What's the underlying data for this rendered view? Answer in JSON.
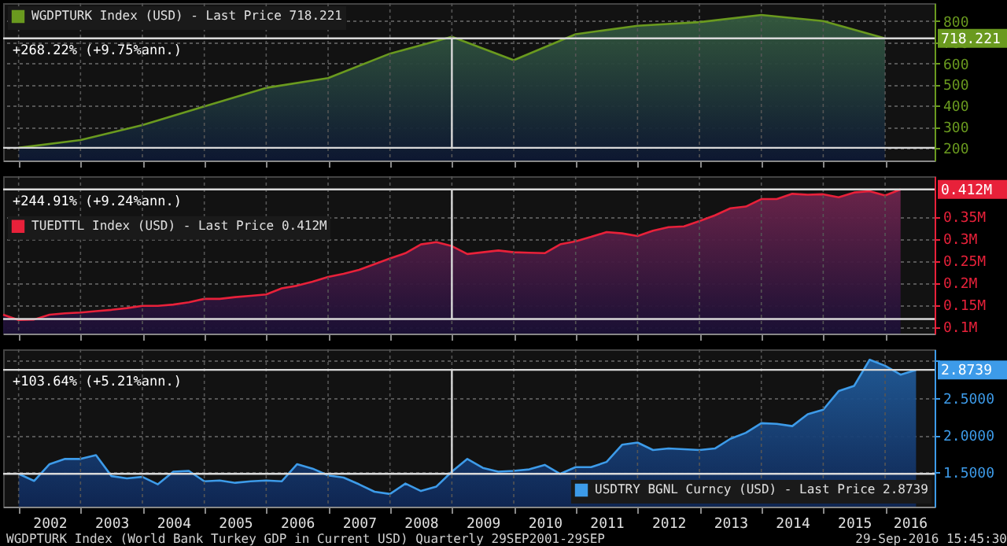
{
  "chart_data": [
    {
      "type": "area",
      "x": [
        2002,
        2003,
        2004,
        2005,
        2006,
        2007,
        2008,
        2009,
        2010,
        2011,
        2012,
        2013,
        2014,
        2015,
        2016
      ],
      "series": [
        {
          "name": "WGDPTURK Index (USD) - Last Price 718.221",
          "color": "#6a9a1f",
          "values": [
            200,
            237,
            308,
            396,
            484,
            530,
            646,
            726,
            615,
            738,
            778,
            795,
            829,
            800,
            718.221
          ]
        }
      ],
      "xlim": [
        2001.75,
        2016.8
      ],
      "xticks": [
        {
          "value": 2002,
          "label": null
        },
        {
          "value": 2003,
          "label": null
        },
        {
          "value": 2004,
          "label": null
        },
        {
          "value": 2005,
          "label": null
        },
        {
          "value": 2006,
          "label": null
        },
        {
          "value": 2007,
          "label": null
        },
        {
          "value": 2008,
          "label": null
        },
        {
          "value": 2009,
          "label": null
        },
        {
          "value": 2010,
          "label": null
        },
        {
          "value": 2011,
          "label": null
        },
        {
          "value": 2012,
          "label": null
        },
        {
          "value": 2013,
          "label": null
        },
        {
          "value": 2014,
          "label": null
        },
        {
          "value": 2015,
          "label": null
        },
        {
          "value": 2016,
          "label": null
        }
      ],
      "ylim": [
        140,
        885
      ],
      "yticks": [
        200,
        300,
        400,
        500,
        600,
        700,
        800
      ],
      "tick_labels": "y",
      "grid": true,
      "legend": "top left",
      "ref_lines": [
        {
          "axis": "y",
          "value": 200,
          "color": "#d9d9d9"
        },
        {
          "axis": "y",
          "value": 718.221,
          "label": "718.221",
          "color": "#d9d9d9"
        },
        {
          "axis": "x",
          "value": 2009,
          "color": "#d9d9d9"
        }
      ],
      "annotations": [
        "+268.22% (+9.75%ann.)"
      ]
    },
    {
      "type": "area",
      "x": [
        2001.75,
        2002,
        2002.25,
        2002.5,
        2002.75,
        2003,
        2003.25,
        2003.5,
        2003.75,
        2004,
        2004.25,
        2004.5,
        2004.75,
        2005,
        2005.25,
        2005.5,
        2005.75,
        2006,
        2006.25,
        2006.5,
        2006.75,
        2007,
        2007.25,
        2007.5,
        2007.75,
        2008,
        2008.25,
        2008.5,
        2008.75,
        2009,
        2009.25,
        2009.5,
        2009.75,
        2010,
        2010.25,
        2010.5,
        2010.75,
        2011,
        2011.25,
        2011.5,
        2011.75,
        2012,
        2012.25,
        2012.5,
        2012.75,
        2013,
        2013.25,
        2013.5,
        2013.75,
        2014,
        2014.25,
        2014.5,
        2014.75,
        2015,
        2015.25,
        2015.5,
        2015.75,
        2016,
        2016.25
      ],
      "series": [
        {
          "name": "TUEDTTL Index (USD) - Last Price 0.412M",
          "color": "#e8213a",
          "values": [
            0.127,
            0.115,
            0.116,
            0.127,
            0.13,
            0.132,
            0.135,
            0.138,
            0.142,
            0.147,
            0.147,
            0.15,
            0.155,
            0.163,
            0.163,
            0.167,
            0.17,
            0.173,
            0.187,
            0.193,
            0.202,
            0.213,
            0.22,
            0.229,
            0.242,
            0.255,
            0.267,
            0.287,
            0.292,
            0.283,
            0.265,
            0.269,
            0.273,
            0.269,
            0.268,
            0.267,
            0.287,
            0.294,
            0.304,
            0.315,
            0.312,
            0.306,
            0.318,
            0.326,
            0.328,
            0.34,
            0.353,
            0.369,
            0.373,
            0.39,
            0.39,
            0.402,
            0.4,
            0.401,
            0.394,
            0.405,
            0.408,
            0.398,
            0.412
          ]
        }
      ],
      "xlim": [
        2001.75,
        2016.8
      ],
      "xticks": [
        {
          "value": 2002,
          "label": null
        },
        {
          "value": 2003,
          "label": null
        },
        {
          "value": 2004,
          "label": null
        },
        {
          "value": 2005,
          "label": null
        },
        {
          "value": 2006,
          "label": null
        },
        {
          "value": 2007,
          "label": null
        },
        {
          "value": 2008,
          "label": null
        },
        {
          "value": 2009,
          "label": null
        },
        {
          "value": 2010,
          "label": null
        },
        {
          "value": 2011,
          "label": null
        },
        {
          "value": 2012,
          "label": null
        },
        {
          "value": 2013,
          "label": null
        },
        {
          "value": 2014,
          "label": null
        },
        {
          "value": 2015,
          "label": null
        },
        {
          "value": 2016,
          "label": null
        }
      ],
      "ylim": [
        0.084,
        0.442
      ],
      "yticks": [
        {
          "value": 0.1,
          "label": "0.1M"
        },
        {
          "value": 0.15,
          "label": "0.15M"
        },
        {
          "value": 0.2,
          "label": "0.2M"
        },
        {
          "value": 0.25,
          "label": "0.25M"
        },
        {
          "value": 0.3,
          "label": "0.3M"
        },
        {
          "value": 0.35,
          "label": "0.35M"
        }
      ],
      "tick_labels": "y",
      "grid": true,
      "legend": "top left",
      "ref_lines": [
        {
          "axis": "y",
          "value": 0.117,
          "color": "#d9d9d9"
        },
        {
          "axis": "y",
          "value": 0.412,
          "label": "0.412M",
          "color": "#d9d9d9"
        },
        {
          "axis": "x",
          "value": 2009,
          "color": "#d9d9d9"
        }
      ],
      "annotations": [
        "+244.91% (+9.24%ann.)"
      ]
    },
    {
      "type": "area",
      "x": [
        2002,
        2002.25,
        2002.5,
        2002.75,
        2003,
        2003.25,
        2003.5,
        2003.75,
        2004,
        2004.25,
        2004.5,
        2004.75,
        2005,
        2005.25,
        2005.5,
        2005.75,
        2006,
        2006.25,
        2006.5,
        2006.75,
        2007,
        2007.25,
        2007.5,
        2007.75,
        2008,
        2008.25,
        2008.5,
        2008.75,
        2009,
        2009.25,
        2009.5,
        2009.75,
        2010,
        2010.25,
        2010.5,
        2010.75,
        2011,
        2011.25,
        2011.5,
        2011.75,
        2012,
        2012.25,
        2012.5,
        2012.75,
        2013,
        2013.25,
        2013.5,
        2013.75,
        2014,
        2014.25,
        2014.5,
        2014.75,
        2015,
        2015.25,
        2015.5,
        2015.75,
        2016,
        2016.25,
        2016.5
      ],
      "series": [
        {
          "name": "USDTRY BGNL Curncy (USD) - Last Price 2.8739",
          "color": "#3d9be9",
          "values": [
            1.48,
            1.385,
            1.61,
            1.68,
            1.68,
            1.73,
            1.45,
            1.42,
            1.44,
            1.34,
            1.51,
            1.52,
            1.38,
            1.39,
            1.36,
            1.38,
            1.39,
            1.38,
            1.61,
            1.55,
            1.46,
            1.43,
            1.34,
            1.24,
            1.21,
            1.35,
            1.25,
            1.31,
            1.51,
            1.68,
            1.56,
            1.51,
            1.52,
            1.54,
            1.6,
            1.48,
            1.57,
            1.57,
            1.64,
            1.87,
            1.9,
            1.8,
            1.82,
            1.81,
            1.8,
            1.82,
            1.95,
            2.03,
            2.16,
            2.15,
            2.12,
            2.28,
            2.34,
            2.59,
            2.66,
            3.01,
            2.93,
            2.81,
            2.8739
          ]
        }
      ],
      "xlim": [
        2001.75,
        2016.8
      ],
      "xticks": [
        {
          "value": 2002,
          "label": null
        },
        {
          "value": 2002.5,
          "label": "2002"
        },
        {
          "value": 2003,
          "label": null
        },
        {
          "value": 2003.5,
          "label": "2003"
        },
        {
          "value": 2004,
          "label": null
        },
        {
          "value": 2004.5,
          "label": "2004"
        },
        {
          "value": 2005,
          "label": null
        },
        {
          "value": 2005.5,
          "label": "2005"
        },
        {
          "value": 2006,
          "label": null
        },
        {
          "value": 2006.5,
          "label": "2006"
        },
        {
          "value": 2007,
          "label": null
        },
        {
          "value": 2007.5,
          "label": "2007"
        },
        {
          "value": 2008,
          "label": null
        },
        {
          "value": 2008.5,
          "label": "2008"
        },
        {
          "value": 2009,
          "label": null
        },
        {
          "value": 2009.5,
          "label": "2009"
        },
        {
          "value": 2010,
          "label": null
        },
        {
          "value": 2010.5,
          "label": "2010"
        },
        {
          "value": 2011,
          "label": null
        },
        {
          "value": 2011.5,
          "label": "2011"
        },
        {
          "value": 2012,
          "label": null
        },
        {
          "value": 2012.5,
          "label": "2012"
        },
        {
          "value": 2013,
          "label": null
        },
        {
          "value": 2013.5,
          "label": "2013"
        },
        {
          "value": 2014,
          "label": null
        },
        {
          "value": 2014.5,
          "label": "2014"
        },
        {
          "value": 2015,
          "label": null
        },
        {
          "value": 2015.5,
          "label": "2015"
        },
        {
          "value": 2016,
          "label": null
        },
        {
          "value": 2016.4,
          "label": "2016"
        }
      ],
      "ylim": [
        1.04,
        3.15
      ],
      "yticks": [
        {
          "value": 1.5,
          "label": "1.5000"
        },
        {
          "value": 2,
          "label": "2.0000"
        },
        {
          "value": 2.5,
          "label": "2.5000"
        },
        {
          "value": 3,
          "label": null
        }
      ],
      "grid": true,
      "legend": "bottom right",
      "ref_lines": [
        {
          "axis": "y",
          "value": 1.48,
          "color": "#d9d9d9"
        },
        {
          "axis": "y",
          "value": 2.8739,
          "label": "2.8739",
          "color": "#d9d9d9"
        },
        {
          "axis": "x",
          "value": 2009,
          "color": "#d9d9d9"
        }
      ],
      "annotations": [
        "+103.64% (+5.21%ann.)",
        "WGDPTURK Index (World Bank Turkey GDP in Current USD)  Quarterly 29SEP2001-29SEP",
        "29-Sep-2016 15:45:30"
      ]
    }
  ]
}
